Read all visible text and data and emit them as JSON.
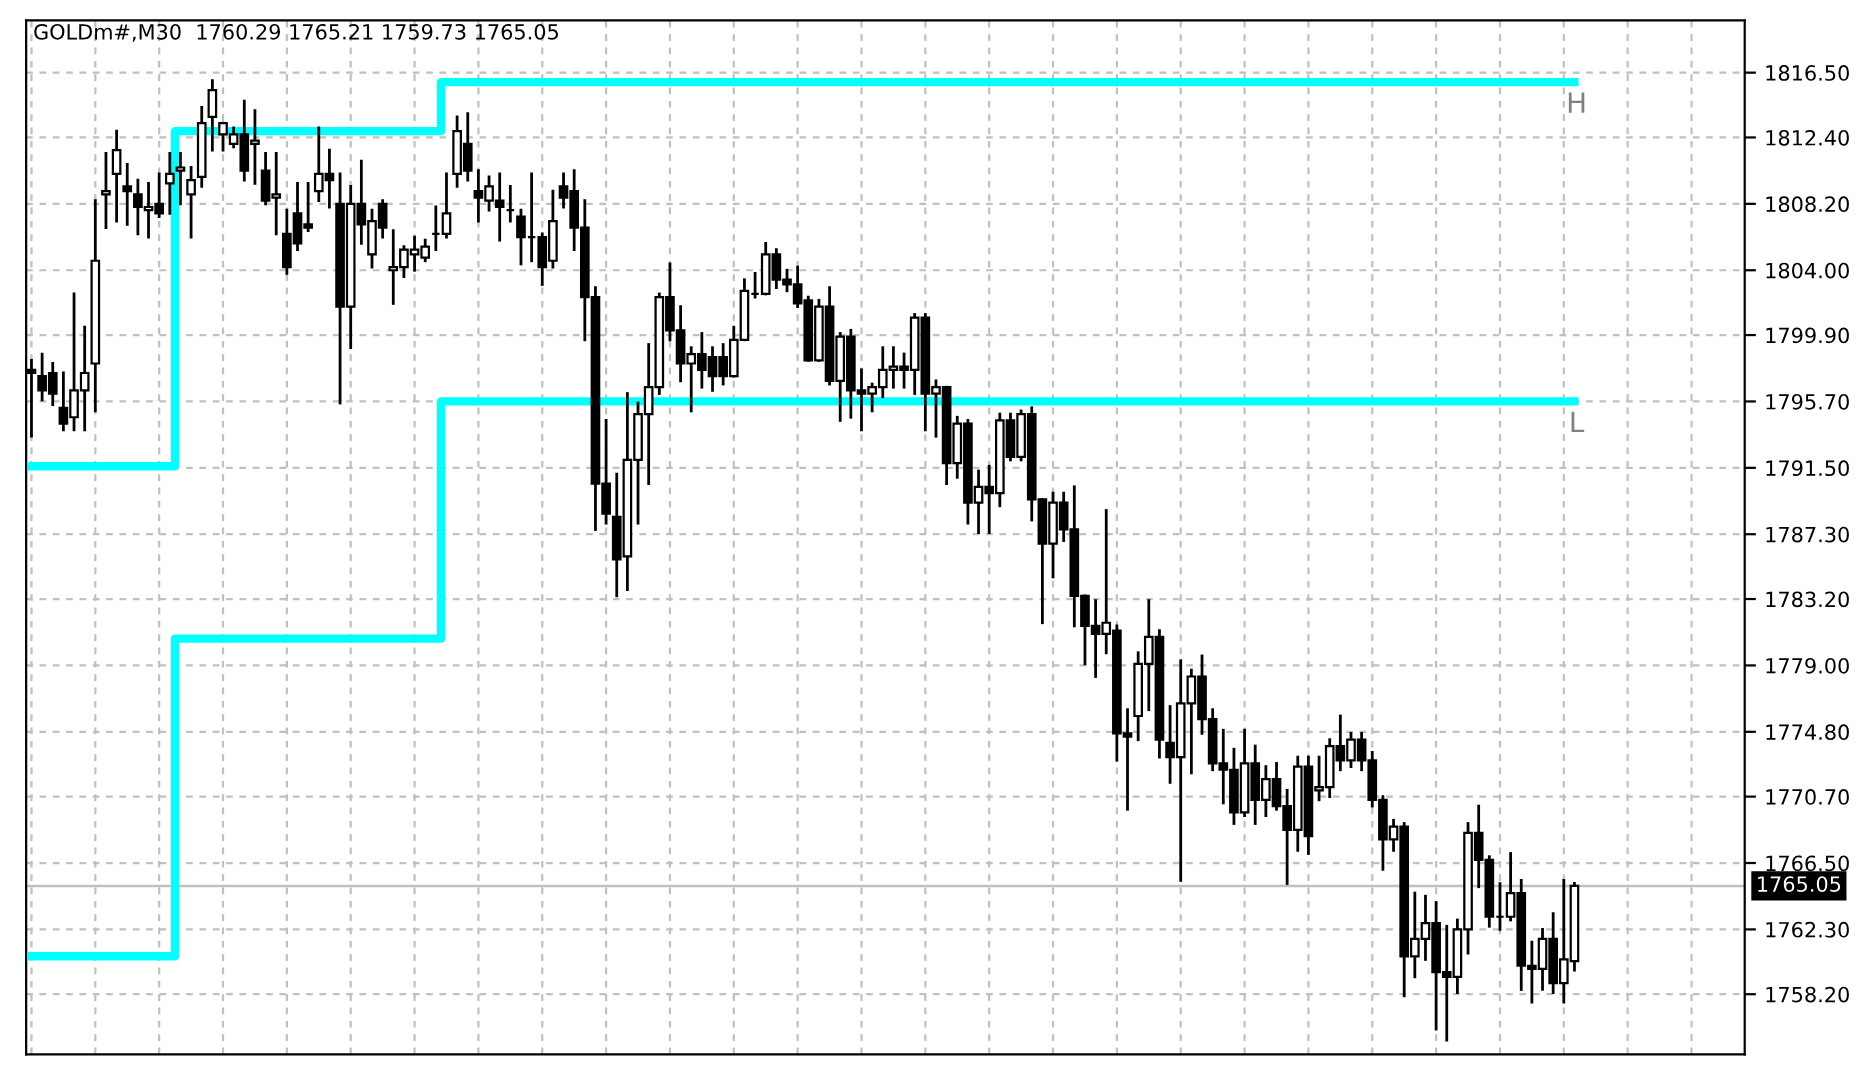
{
  "chart_data": {
    "type": "candlestick",
    "title": "GOLDm#,M30  1760.29 1765.21 1759.73 1765.05",
    "categories": [
      null,
      null,
      null,
      null,
      null,
      null,
      null,
      null,
      null,
      null,
      null,
      null,
      null,
      null,
      null,
      null,
      null,
      null,
      null,
      null,
      null,
      null,
      null,
      null,
      null,
      null,
      null,
      null,
      null,
      null,
      null,
      null,
      null,
      null,
      null,
      null,
      null,
      null,
      null,
      null,
      null,
      null,
      null,
      null,
      null,
      null,
      null,
      null,
      null,
      null,
      null,
      null,
      null,
      null,
      null,
      null,
      null,
      null,
      null,
      null,
      null,
      null,
      null,
      null,
      null,
      null,
      null,
      null,
      null,
      null,
      null,
      null,
      null,
      null,
      null,
      null,
      null,
      null,
      null,
      null,
      null,
      null,
      null,
      null,
      null,
      null,
      null,
      null,
      null,
      null,
      null,
      null,
      null,
      null,
      null,
      null,
      null,
      null,
      null,
      null,
      null,
      null,
      null,
      null,
      null,
      null,
      null,
      null,
      null,
      null,
      null,
      null,
      null,
      null,
      null,
      null,
      null,
      null,
      null,
      null,
      null,
      null,
      null,
      null,
      null,
      null,
      null,
      null,
      null,
      null,
      null,
      null,
      null,
      null,
      null,
      null,
      null,
      null,
      null,
      null,
      null,
      null,
      null,
      null,
      null,
      null
    ],
    "color": "#000000",
    "ohlc": [
      [
        1797.7,
        1798.3,
        1793.5,
        1797.5
      ],
      [
        1797.3,
        1798.7,
        1795.8,
        1796.4
      ],
      [
        1797.5,
        1798.1,
        1795.5,
        1796.2
      ],
      [
        1795.3,
        1797.5,
        1793.9,
        1794.3
      ],
      [
        1794.7,
        1802.5,
        1793.9,
        1796.4
      ],
      [
        1796.4,
        1800.4,
        1793.9,
        1797.5
      ],
      [
        1798.1,
        1808.4,
        1795.1,
        1804.6
      ],
      [
        1808.8,
        1811.4,
        1806.7,
        1809.0
      ],
      [
        1810.1,
        1812.8,
        1807.1,
        1811.6
      ],
      [
        1809.3,
        1810.7,
        1806.9,
        1809.0
      ],
      [
        1808.8,
        1809.7,
        1806.3,
        1808.0
      ],
      [
        1807.8,
        1809.5,
        1806.1,
        1808.0
      ],
      [
        1808.2,
        1810.1,
        1807.4,
        1807.6
      ],
      [
        1809.5,
        1811.4,
        1807.6,
        1810.1
      ],
      [
        1810.3,
        1811.4,
        1808.2,
        1810.5
      ],
      [
        1808.8,
        1810.5,
        1806.1,
        1809.7
      ],
      [
        1809.9,
        1814.3,
        1809.3,
        1813.3
      ],
      [
        1813.7,
        1816.0,
        1811.6,
        1815.4
      ],
      [
        1812.6,
        1813.3,
        1811.6,
        1813.3
      ],
      [
        1812.0,
        1813.0,
        1811.8,
        1812.6
      ],
      [
        1812.6,
        1814.7,
        1809.7,
        1810.3
      ],
      [
        1812.0,
        1814.1,
        1809.5,
        1812.2
      ],
      [
        1810.3,
        1811.4,
        1808.2,
        1808.4
      ],
      [
        1808.6,
        1811.4,
        1806.3,
        1808.8
      ],
      [
        1806.3,
        1807.8,
        1803.8,
        1804.2
      ],
      [
        1807.6,
        1809.5,
        1805.3,
        1805.7
      ],
      [
        1806.9,
        1809.5,
        1806.5,
        1806.7
      ],
      [
        1809.0,
        1813.0,
        1808.4,
        1810.1
      ],
      [
        1810.1,
        1811.6,
        1808.0,
        1809.7
      ],
      [
        1808.2,
        1810.1,
        1795.6,
        1801.7
      ],
      [
        1801.7,
        1809.3,
        1799.1,
        1808.2
      ],
      [
        1808.2,
        1810.9,
        1805.7,
        1806.9
      ],
      [
        1805.0,
        1807.8,
        1804.2,
        1807.1
      ],
      [
        1808.2,
        1808.4,
        1806.1,
        1806.7
      ],
      [
        1804.0,
        1806.5,
        1801.9,
        1804.2
      ],
      [
        1804.2,
        1805.5,
        1803.6,
        1805.3
      ],
      [
        1805.0,
        1806.1,
        1804.0,
        1805.3
      ],
      [
        1804.8,
        1805.9,
        1804.6,
        1805.5
      ],
      [
        1806.3,
        1808.0,
        1805.3,
        1806.3
      ],
      [
        1806.3,
        1810.1,
        1806.1,
        1807.6
      ],
      [
        1810.1,
        1813.7,
        1809.3,
        1812.8
      ],
      [
        1812.0,
        1813.9,
        1809.7,
        1810.3
      ],
      [
        1809.0,
        1810.3,
        1807.1,
        1808.6
      ],
      [
        1808.4,
        1809.9,
        1807.8,
        1809.3
      ],
      [
        1808.4,
        1810.1,
        1805.9,
        1808.0
      ],
      [
        1807.8,
        1809.3,
        1807.1,
        1807.8
      ],
      [
        1807.4,
        1807.8,
        1804.4,
        1806.1
      ],
      [
        1806.1,
        1810.1,
        1804.6,
        1806.1
      ],
      [
        1806.1,
        1806.3,
        1803.1,
        1804.2
      ],
      [
        1804.6,
        1809.0,
        1804.2,
        1807.1
      ],
      [
        1809.3,
        1810.1,
        1808.0,
        1808.6
      ],
      [
        1809.0,
        1810.3,
        1805.3,
        1806.7
      ],
      [
        1806.7,
        1808.4,
        1799.6,
        1802.3
      ],
      [
        1802.3,
        1802.9,
        1787.6,
        1790.5
      ],
      [
        1790.5,
        1794.5,
        1788.0,
        1788.6
      ],
      [
        1788.4,
        1791.1,
        1783.4,
        1785.7
      ],
      [
        1785.9,
        1796.2,
        1783.8,
        1792.0
      ],
      [
        1792.0,
        1795.6,
        1788.0,
        1794.9
      ],
      [
        1794.9,
        1799.3,
        1790.5,
        1796.6
      ],
      [
        1796.6,
        1802.5,
        1796.2,
        1802.3
      ],
      [
        1802.3,
        1804.4,
        1799.6,
        1800.2
      ],
      [
        1800.2,
        1801.7,
        1797.0,
        1798.1
      ],
      [
        1798.1,
        1799.1,
        1795.1,
        1798.7
      ],
      [
        1798.7,
        1800.0,
        1796.6,
        1797.7
      ],
      [
        1798.5,
        1799.1,
        1796.4,
        1797.3
      ],
      [
        1798.5,
        1799.3,
        1796.8,
        1797.3
      ],
      [
        1797.3,
        1800.4,
        1797.3,
        1799.6
      ],
      [
        1799.6,
        1803.4,
        1799.6,
        1802.7
      ],
      [
        1802.5,
        1803.8,
        1802.3,
        1802.5
      ],
      [
        1802.5,
        1805.7,
        1802.5,
        1805.0
      ],
      [
        1805.0,
        1805.3,
        1802.9,
        1803.4
      ],
      [
        1803.4,
        1804.0,
        1802.7,
        1803.1
      ],
      [
        1803.1,
        1804.2,
        1801.7,
        1801.9
      ],
      [
        1802.1,
        1802.3,
        1798.3,
        1798.3
      ],
      [
        1798.3,
        1802.1,
        1798.3,
        1801.7
      ],
      [
        1801.7,
        1802.9,
        1796.8,
        1797.0
      ],
      [
        1797.0,
        1800.0,
        1794.5,
        1799.8
      ],
      [
        1799.8,
        1800.2,
        1794.7,
        1796.4
      ],
      [
        1796.4,
        1797.7,
        1793.9,
        1796.2
      ],
      [
        1796.2,
        1796.8,
        1795.1,
        1796.6
      ],
      [
        1796.6,
        1799.1,
        1796.0,
        1797.7
      ],
      [
        1797.7,
        1799.1,
        1796.6,
        1797.9
      ],
      [
        1797.9,
        1798.7,
        1796.6,
        1797.7
      ],
      [
        1797.7,
        1801.2,
        1796.2,
        1801.0
      ],
      [
        1801.0,
        1801.2,
        1793.9,
        1796.2
      ],
      [
        1796.2,
        1797.0,
        1793.5,
        1796.6
      ],
      [
        1796.6,
        1796.6,
        1790.5,
        1791.8
      ],
      [
        1791.8,
        1794.7,
        1790.9,
        1794.3
      ],
      [
        1794.3,
        1794.5,
        1788.0,
        1789.3
      ],
      [
        1789.3,
        1791.3,
        1787.4,
        1790.3
      ],
      [
        1790.3,
        1791.6,
        1787.4,
        1789.9
      ],
      [
        1789.9,
        1794.9,
        1789.1,
        1794.5
      ],
      [
        1794.5,
        1794.9,
        1792.0,
        1792.2
      ],
      [
        1792.2,
        1795.1,
        1792.0,
        1794.9
      ],
      [
        1794.9,
        1795.3,
        1788.2,
        1789.5
      ],
      [
        1789.5,
        1789.5,
        1781.7,
        1786.7
      ],
      [
        1786.7,
        1789.9,
        1784.6,
        1789.3
      ],
      [
        1789.3,
        1789.9,
        1786.9,
        1787.6
      ],
      [
        1787.6,
        1790.3,
        1781.5,
        1783.4
      ],
      [
        1783.4,
        1783.4,
        1779.1,
        1781.5
      ],
      [
        1781.5,
        1783.1,
        1778.3,
        1781.0
      ],
      [
        1781.0,
        1788.8,
        1779.8,
        1781.7
      ],
      [
        1781.2,
        1781.5,
        1773.0,
        1774.7
      ],
      [
        1774.7,
        1776.2,
        1769.9,
        1774.5
      ],
      [
        1775.8,
        1779.8,
        1774.3,
        1779.1
      ],
      [
        1779.1,
        1783.1,
        1776.2,
        1780.8
      ],
      [
        1780.8,
        1781.2,
        1773.2,
        1774.3
      ],
      [
        1774.1,
        1776.4,
        1771.6,
        1773.2
      ],
      [
        1773.2,
        1779.3,
        1765.4,
        1776.6
      ],
      [
        1776.6,
        1778.7,
        1772.2,
        1778.3
      ],
      [
        1778.3,
        1779.6,
        1774.7,
        1775.6
      ],
      [
        1775.6,
        1776.2,
        1772.4,
        1772.8
      ],
      [
        1772.8,
        1774.9,
        1770.3,
        1772.4
      ],
      [
        1772.4,
        1773.7,
        1769.0,
        1769.7
      ],
      [
        1769.7,
        1774.9,
        1769.5,
        1772.8
      ],
      [
        1772.8,
        1773.9,
        1769.0,
        1770.5
      ],
      [
        1770.5,
        1772.6,
        1769.5,
        1771.8
      ],
      [
        1771.8,
        1772.8,
        1769.9,
        1770.1
      ],
      [
        1770.1,
        1771.1,
        1765.2,
        1768.6
      ],
      [
        1768.6,
        1773.2,
        1767.3,
        1772.6
      ],
      [
        1772.6,
        1773.2,
        1767.1,
        1768.2
      ],
      [
        1771.1,
        1773.2,
        1770.5,
        1771.3
      ],
      [
        1771.3,
        1774.3,
        1770.7,
        1773.9
      ],
      [
        1773.9,
        1775.8,
        1772.4,
        1773.0
      ],
      [
        1773.0,
        1774.7,
        1772.6,
        1774.3
      ],
      [
        1774.3,
        1774.7,
        1772.4,
        1773.0
      ],
      [
        1773.0,
        1773.5,
        1770.1,
        1770.5
      ],
      [
        1770.5,
        1770.7,
        1766.1,
        1768.0
      ],
      [
        1768.0,
        1769.2,
        1767.3,
        1768.8
      ],
      [
        1768.8,
        1769.0,
        1758.1,
        1760.6
      ],
      [
        1760.6,
        1764.6,
        1759.3,
        1761.7
      ],
      [
        1761.7,
        1764.4,
        1760.4,
        1762.7
      ],
      [
        1762.7,
        1764.0,
        1756.0,
        1759.6
      ],
      [
        1759.6,
        1762.5,
        1755.3,
        1759.3
      ],
      [
        1759.3,
        1762.9,
        1758.3,
        1762.3
      ],
      [
        1762.3,
        1769.0,
        1760.8,
        1768.4
      ],
      [
        1768.4,
        1770.1,
        1765.0,
        1766.7
      ],
      [
        1766.7,
        1766.9,
        1762.5,
        1763.1
      ],
      [
        1763.1,
        1765.2,
        1762.3,
        1763.1
      ],
      [
        1763.1,
        1767.1,
        1762.9,
        1764.6
      ],
      [
        1764.6,
        1765.4,
        1758.5,
        1760.0
      ],
      [
        1760.0,
        1761.5,
        1757.7,
        1759.8
      ],
      [
        1759.8,
        1762.3,
        1758.5,
        1761.7
      ],
      [
        1761.7,
        1763.3,
        1758.3,
        1758.9
      ],
      [
        1758.9,
        1765.4,
        1757.7,
        1760.4
      ],
      [
        1760.29,
        1765.21,
        1759.73,
        1765.05
      ]
    ],
    "series": [
      {
        "name": "H",
        "type": "step",
        "color": "#00ffff",
        "values": [
          1791.6,
          1791.6,
          1791.6,
          1791.6,
          1791.6,
          1791.6,
          1791.6,
          1791.6,
          1791.6,
          1791.6,
          1791.6,
          1791.6,
          1791.6,
          1791.6,
          1812.8,
          1812.8,
          1812.8,
          1812.8,
          1812.8,
          1812.8,
          1812.8,
          1812.8,
          1812.8,
          1812.8,
          1812.8,
          1812.8,
          1812.8,
          1812.8,
          1812.8,
          1812.8,
          1812.8,
          1812.8,
          1812.8,
          1812.8,
          1812.8,
          1812.8,
          1812.8,
          1812.8,
          1812.8,
          1815.9,
          1815.9,
          1815.9,
          1815.9,
          1815.9,
          1815.9,
          1815.9,
          1815.9,
          1815.9,
          1815.9,
          1815.9,
          1815.9,
          1815.9,
          1815.9,
          1815.9,
          1815.9,
          1815.9,
          1815.9,
          1815.9,
          1815.9,
          1815.9,
          1815.9,
          1815.9,
          1815.9,
          1815.9,
          1815.9,
          1815.9,
          1815.9,
          1815.9,
          1815.9,
          1815.9,
          1815.9,
          1815.9,
          1815.9,
          1815.9,
          1815.9,
          1815.9,
          1815.9,
          1815.9,
          1815.9,
          1815.9,
          1815.9,
          1815.9,
          1815.9,
          1815.9,
          1815.9,
          1815.9,
          1815.9,
          1815.9,
          1815.9,
          1815.9,
          1815.9,
          1815.9,
          1815.9,
          1815.9,
          1815.9,
          1815.9,
          1815.9,
          1815.9,
          1815.9,
          1815.9,
          1815.9,
          1815.9,
          1815.9,
          1815.9,
          1815.9,
          1815.9,
          1815.9,
          1815.9,
          1815.9,
          1815.9,
          1815.9,
          1815.9,
          1815.9,
          1815.9,
          1815.9,
          1815.9,
          1815.9,
          1815.9,
          1815.9,
          1815.9,
          1815.9,
          1815.9,
          1815.9,
          1815.9,
          1815.9,
          1815.9,
          1815.9,
          1815.9,
          1815.9,
          1815.9,
          1815.9,
          1815.9,
          1815.9,
          1815.9,
          1815.9,
          1815.9,
          1815.9,
          1815.9,
          1815.9,
          1815.9,
          1815.9,
          1815.9,
          1815.9,
          1815.9,
          1815.9,
          1815.9
        ]
      },
      {
        "name": "L",
        "type": "step",
        "color": "#00ffff",
        "values": [
          1760.6,
          1760.6,
          1760.6,
          1760.6,
          1760.6,
          1760.6,
          1760.6,
          1760.6,
          1760.6,
          1760.6,
          1760.6,
          1760.6,
          1760.6,
          1760.6,
          1780.7,
          1780.7,
          1780.7,
          1780.7,
          1780.7,
          1780.7,
          1780.7,
          1780.7,
          1780.7,
          1780.7,
          1780.7,
          1780.7,
          1780.7,
          1780.7,
          1780.7,
          1780.7,
          1780.7,
          1780.7,
          1780.7,
          1780.7,
          1780.7,
          1780.7,
          1780.7,
          1780.7,
          1780.7,
          1795.7,
          1795.7,
          1795.7,
          1795.7,
          1795.7,
          1795.7,
          1795.7,
          1795.7,
          1795.7,
          1795.7,
          1795.7,
          1795.7,
          1795.7,
          1795.7,
          1795.7,
          1795.7,
          1795.7,
          1795.7,
          1795.7,
          1795.7,
          1795.7,
          1795.7,
          1795.7,
          1795.7,
          1795.7,
          1795.7,
          1795.7,
          1795.7,
          1795.7,
          1795.7,
          1795.7,
          1795.7,
          1795.7,
          1795.7,
          1795.7,
          1795.7,
          1795.7,
          1795.7,
          1795.7,
          1795.7,
          1795.7,
          1795.7,
          1795.7,
          1795.7,
          1795.7,
          1795.7,
          1795.7,
          1795.7,
          1795.7,
          1795.7,
          1795.7,
          1795.7,
          1795.7,
          1795.7,
          1795.7,
          1795.7,
          1795.7,
          1795.7,
          1795.7,
          1795.7,
          1795.7,
          1795.7,
          1795.7,
          1795.7,
          1795.7,
          1795.7,
          1795.7,
          1795.7,
          1795.7,
          1795.7,
          1795.7,
          1795.7,
          1795.7,
          1795.7,
          1795.7,
          1795.7,
          1795.7,
          1795.7,
          1795.7,
          1795.7,
          1795.7,
          1795.7,
          1795.7,
          1795.7,
          1795.7,
          1795.7,
          1795.7,
          1795.7,
          1795.7,
          1795.7,
          1795.7,
          1795.7,
          1795.7,
          1795.7,
          1795.7,
          1795.7,
          1795.7,
          1795.7,
          1795.7,
          1795.7,
          1795.7,
          1795.7,
          1795.7,
          1795.7,
          1795.7,
          1795.7,
          1795.7
        ]
      }
    ],
    "ylim": [
      1754.4,
      1819.8
    ],
    "yticks": [
      {
        "value": 1816.5,
        "label": "1816.50"
      },
      {
        "value": 1812.4,
        "label": "1812.40"
      },
      {
        "value": 1808.2,
        "label": "1808.20"
      },
      {
        "value": 1804.0,
        "label": "1804.00"
      },
      {
        "value": 1799.9,
        "label": "1799.90"
      },
      {
        "value": 1795.7,
        "label": "1795.70"
      },
      {
        "value": 1791.5,
        "label": "1791.50"
      },
      {
        "value": 1787.3,
        "label": "1787.30"
      },
      {
        "value": 1783.2,
        "label": "1783.20"
      },
      {
        "value": 1779.0,
        "label": "1779.00"
      },
      {
        "value": 1774.8,
        "label": "1774.80"
      },
      {
        "value": 1770.7,
        "label": "1770.70"
      },
      {
        "value": 1766.5,
        "label": "1766.50"
      },
      {
        "value": 1762.3,
        "label": "1762.30"
      },
      {
        "value": 1758.2,
        "label": "1758.20"
      }
    ],
    "ref_lines": [
      {
        "axis": "y",
        "value": 1765.05,
        "label": "1765.05",
        "color": "#c0c0c0"
      }
    ],
    "grid": true,
    "tick_labels": "y"
  }
}
